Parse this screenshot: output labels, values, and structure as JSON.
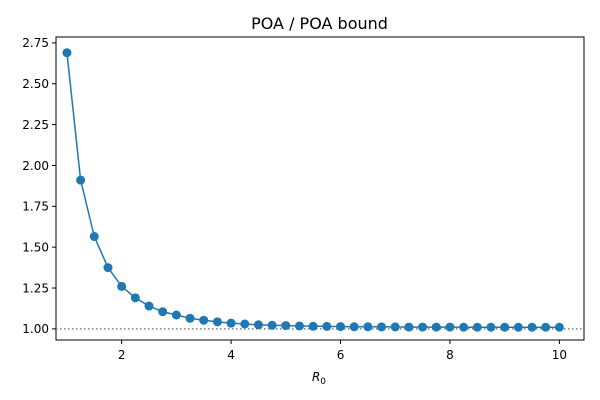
{
  "chart_data": {
    "type": "line",
    "title": "POA / POA bound",
    "xlabel": "R",
    "xlabel_subscript": "0",
    "ylabel": "",
    "xlim": [
      0.8,
      10.45
    ],
    "ylim": [
      0.932,
      2.786
    ],
    "xticks": [
      2,
      4,
      6,
      8,
      10
    ],
    "yticks": [
      1.0,
      1.25,
      1.5,
      1.75,
      2.0,
      2.25,
      2.5,
      2.75
    ],
    "xtick_labels": [
      "2",
      "4",
      "6",
      "8",
      "10"
    ],
    "ytick_labels": [
      "1.00",
      "1.25",
      "1.50",
      "1.75",
      "2.00",
      "2.25",
      "2.50",
      "2.75"
    ],
    "grid": false,
    "reference_line": {
      "y": 1.0,
      "style": "dotted",
      "color": "#808080"
    },
    "series": [
      {
        "color": "#1f77b4",
        "marker": "circle",
        "x": [
          1.0,
          1.25,
          1.5,
          1.75,
          2.0,
          2.25,
          2.5,
          2.75,
          3.0,
          3.25,
          3.5,
          3.75,
          4.0,
          4.25,
          4.5,
          4.75,
          5.0,
          5.25,
          5.5,
          5.75,
          6.0,
          6.25,
          6.5,
          6.75,
          7.0,
          7.25,
          7.5,
          7.75,
          8.0,
          8.25,
          8.5,
          8.75,
          9.0,
          9.25,
          9.5,
          9.75,
          10.0
        ],
        "y": [
          2.69,
          1.91,
          1.565,
          1.375,
          1.26,
          1.19,
          1.14,
          1.105,
          1.085,
          1.065,
          1.053,
          1.043,
          1.035,
          1.03,
          1.025,
          1.022,
          1.02,
          1.018,
          1.016,
          1.015,
          1.014,
          1.013,
          1.013,
          1.012,
          1.012,
          1.011,
          1.011,
          1.011,
          1.011,
          1.01,
          1.01,
          1.01,
          1.01,
          1.01,
          1.01,
          1.01,
          1.01
        ]
      }
    ]
  }
}
